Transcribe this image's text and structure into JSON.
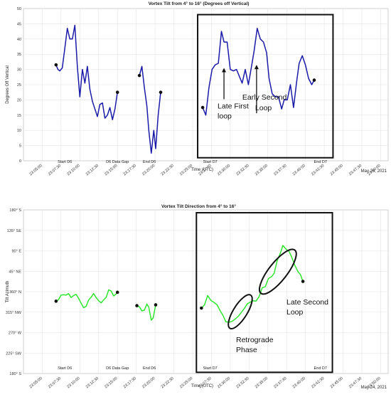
{
  "date_label": "May 24, 2021",
  "xlabel": "Time (UTC)",
  "x_ticks": [
    "23:05:00",
    "23:07:30",
    "23:10:00",
    "23:12:30",
    "23:15:00",
    "23:17:30",
    "23:20:00",
    "23:22:30",
    "23:25:00",
    "23:27:30",
    "23:30:00",
    "23:32:30",
    "23:35:00",
    "23:37:30",
    "23:40:00",
    "23:42:30",
    "23:45:00",
    "23:47:30",
    "23:50:00"
  ],
  "events": [
    {
      "label": "Start D6",
      "t": "23:08:00"
    },
    {
      "label": "D6 Data Gap",
      "t": "23:15:00"
    },
    {
      "label": "End D6",
      "t": "23:19:15"
    },
    {
      "label": "Start D7",
      "t": "23:27:20"
    },
    {
      "label": "End D7",
      "t": "23:42:00"
    }
  ],
  "colors": {
    "tilt_line": "#1a1aa8",
    "direction_line": "#2ee62e",
    "marker": "#111111",
    "box": "#111111"
  },
  "chart_data": [
    {
      "type": "line",
      "title": "Vortex Tilt from 4° to 16° (Degrees off Vertical)",
      "xlabel": "Time (UTC)",
      "ylabel": "Degrees Off Vertical",
      "xlim": [
        "23:02:30",
        "23:51:00"
      ],
      "ylim": [
        0,
        50
      ],
      "y_ticks": [
        "0",
        "5",
        "10",
        "15",
        "20",
        "25",
        "30",
        "35",
        "40",
        "45",
        "50"
      ],
      "grid": true,
      "series": [
        {
          "values": [
            [
              "23:06:50",
              31.5
            ],
            [
              "23:07:05",
              30
            ],
            [
              "23:07:20",
              29.5
            ],
            [
              "23:07:40",
              30.5
            ],
            [
              "23:08:00",
              37
            ],
            [
              "23:08:20",
              43.5
            ],
            [
              "23:08:40",
              40
            ],
            [
              "23:09:00",
              40
            ],
            [
              "23:09:20",
              44.5
            ],
            [
              "23:09:40",
              31
            ],
            [
              "23:10:00",
              21
            ],
            [
              "23:10:20",
              30
            ],
            [
              "23:10:40",
              25.5
            ],
            [
              "23:11:00",
              31
            ],
            [
              "23:11:20",
              23.5
            ],
            [
              "23:11:40",
              19.5
            ],
            [
              "23:12:00",
              17
            ],
            [
              "23:12:20",
              14.5
            ],
            [
              "23:12:40",
              18.5
            ],
            [
              "23:13:00",
              19
            ],
            [
              "23:13:20",
              14
            ],
            [
              "23:13:40",
              15
            ],
            [
              "23:14:00",
              17.5
            ],
            [
              "23:14:20",
              13.5
            ],
            [
              "23:14:40",
              17
            ],
            [
              "23:15:00",
              22.5
            ]
          ]
        },
        {
          "values": [
            [
              "23:17:55",
              28
            ],
            [
              "23:18:15",
              31
            ],
            [
              "23:18:35",
              24
            ],
            [
              "23:18:55",
              18
            ],
            [
              "23:19:10",
              10
            ],
            [
              "23:19:30",
              2.5
            ],
            [
              "23:19:50",
              10
            ],
            [
              "23:20:05",
              4
            ],
            [
              "23:20:25",
              15
            ],
            [
              "23:20:45",
              22.5
            ]
          ]
        },
        {
          "values": [
            [
              "23:26:20",
              17.5
            ],
            [
              "23:26:45",
              15
            ],
            [
              "23:27:10",
              24
            ],
            [
              "23:27:35",
              30
            ],
            [
              "23:28:00",
              31.5
            ],
            [
              "23:28:25",
              32
            ],
            [
              "23:28:50",
              42.5
            ],
            [
              "23:29:10",
              39
            ],
            [
              "23:29:35",
              39
            ],
            [
              "23:30:00",
              30
            ],
            [
              "23:30:25",
              29.5
            ],
            [
              "23:30:50",
              30
            ],
            [
              "23:31:10",
              28
            ],
            [
              "23:31:35",
              25.5
            ],
            [
              "23:32:00",
              30
            ],
            [
              "23:32:25",
              25
            ],
            [
              "23:32:50",
              31
            ],
            [
              "23:33:10",
              36
            ],
            [
              "23:33:35",
              43.5
            ],
            [
              "23:34:00",
              40
            ],
            [
              "23:34:25",
              39
            ],
            [
              "23:34:50",
              35.5
            ],
            [
              "23:35:10",
              27
            ],
            [
              "23:35:35",
              22
            ],
            [
              "23:36:00",
              21
            ],
            [
              "23:36:25",
              21
            ],
            [
              "23:36:50",
              17
            ],
            [
              "23:37:10",
              20
            ],
            [
              "23:37:35",
              20
            ],
            [
              "23:38:00",
              25
            ],
            [
              "23:38:25",
              17.5
            ],
            [
              "23:38:50",
              26
            ],
            [
              "23:39:10",
              32
            ],
            [
              "23:39:35",
              34.5
            ],
            [
              "23:40:00",
              31.5
            ],
            [
              "23:40:25",
              27
            ],
            [
              "23:40:50",
              25
            ],
            [
              "23:41:10",
              26.5
            ]
          ]
        }
      ],
      "markers": [
        [
          "23:06:50",
          31.5
        ],
        [
          "23:15:00",
          22.5
        ],
        [
          "23:17:55",
          28
        ],
        [
          "23:20:45",
          22.5
        ],
        [
          "23:26:20",
          17.5
        ],
        [
          "23:41:10",
          26.5
        ]
      ],
      "annotations": [
        {
          "text_lines": [
            "Late First",
            "loop"
          ],
          "arrow_to": [
            "23:29:10",
            30.5
          ]
        },
        {
          "text_lines": [
            "Early Second",
            "Loop"
          ],
          "arrow_to": [
            "23:33:30",
            31.5
          ]
        }
      ],
      "highlight_box": {
        "x": [
          "23:25:40",
          "23:43:40"
        ],
        "y": [
          1,
          48
        ]
      }
    },
    {
      "type": "line",
      "title": "Vortex Tilt Direction from 4° to 16°",
      "xlabel": "Time (UTC)",
      "ylabel": "Tilt Azimuth",
      "xlim": [
        "23:02:30",
        "23:51:00"
      ],
      "ylim": [
        180,
        585
      ],
      "y_ticks": [
        "180° S",
        "225° SW",
        "270° W",
        "315° NW",
        "360° N",
        "45° NE",
        "90° E",
        "135° SE",
        "180° S"
      ],
      "grid": true,
      "series": [
        {
          "values": [
            [
              "23:06:50",
              359
            ],
            [
              "23:07:10",
              363
            ],
            [
              "23:07:30",
              374
            ],
            [
              "23:07:50",
              375
            ],
            [
              "23:08:10",
              374
            ],
            [
              "23:08:30",
              378
            ],
            [
              "23:08:50",
              368
            ],
            [
              "23:09:10",
              373
            ],
            [
              "23:09:30",
              376
            ],
            [
              "23:09:50",
              366
            ],
            [
              "23:10:10",
              354
            ],
            [
              "23:10:30",
              343
            ],
            [
              "23:10:50",
              346
            ],
            [
              "23:11:10",
              362
            ],
            [
              "23:11:30",
              369
            ],
            [
              "23:11:50",
              378
            ],
            [
              "23:12:10",
              368
            ],
            [
              "23:12:30",
              360
            ],
            [
              "23:12:50",
              355
            ],
            [
              "23:13:10",
              362
            ],
            [
              "23:13:30",
              369
            ],
            [
              "23:13:50",
              387
            ],
            [
              "23:14:10",
              384
            ],
            [
              "23:14:30",
              372
            ],
            [
              "23:14:50",
              377
            ],
            [
              "23:15:00",
              381
            ]
          ]
        },
        {
          "values": [
            [
              "23:17:35",
              348
            ],
            [
              "23:17:55",
              345
            ],
            [
              "23:18:15",
              335
            ],
            [
              "23:18:35",
              337
            ],
            [
              "23:18:55",
              352
            ],
            [
              "23:19:10",
              344
            ],
            [
              "23:19:30",
              312
            ],
            [
              "23:19:45",
              318
            ],
            [
              "23:20:05",
              350
            ]
          ]
        },
        {
          "values": [
            [
              "23:26:10",
              342
            ],
            [
              "23:26:35",
              350
            ],
            [
              "23:27:00",
              373
            ],
            [
              "23:27:25",
              361
            ],
            [
              "23:27:50",
              356
            ],
            [
              "23:28:15",
              350
            ],
            [
              "23:28:40",
              335
            ],
            [
              "23:29:00",
              325
            ],
            [
              "23:29:25",
              308
            ],
            [
              "23:29:50",
              307
            ],
            [
              "23:30:15",
              309
            ],
            [
              "23:30:40",
              315
            ],
            [
              "23:31:05",
              322
            ],
            [
              "23:31:25",
              330
            ],
            [
              "23:31:50",
              340
            ],
            [
              "23:32:15",
              352
            ],
            [
              "23:32:40",
              357
            ],
            [
              "23:33:00",
              360
            ],
            [
              "23:33:25",
              359
            ],
            [
              "23:33:50",
              370
            ],
            [
              "23:34:15",
              392
            ],
            [
              "23:34:40",
              395
            ],
            [
              "23:35:05",
              415
            ],
            [
              "23:35:30",
              420
            ],
            [
              "23:35:50",
              428
            ],
            [
              "23:36:15",
              460
            ],
            [
              "23:36:40",
              478
            ],
            [
              "23:37:00",
              497
            ],
            [
              "23:37:25",
              488
            ],
            [
              "23:37:50",
              482
            ],
            [
              "23:38:10",
              468
            ],
            [
              "23:38:35",
              448
            ],
            [
              "23:39:00",
              432
            ],
            [
              "23:39:20",
              425
            ],
            [
              "23:39:40",
              408
            ]
          ]
        }
      ],
      "markers": [
        [
          "23:06:50",
          359
        ],
        [
          "23:15:00",
          381
        ],
        [
          "23:17:35",
          348
        ],
        [
          "23:20:05",
          350
        ],
        [
          "23:26:10",
          342
        ],
        [
          "23:39:40",
          408
        ]
      ],
      "annotations": [
        {
          "text_lines": [
            "Retrograde",
            "Phase"
          ],
          "ellipse_center": [
            "23:31:20",
            333
          ],
          "ellipse_radii_min_deg": [
            2.6,
            33
          ],
          "rotation": -58
        },
        {
          "text_lines": [
            "Late Second",
            "Loop"
          ],
          "ellipse_center": [
            "23:36:20",
            432
          ],
          "ellipse_radii_min_deg": [
            3.2,
            68
          ],
          "rotation": -52
        }
      ],
      "highlight_box": {
        "x": [
          "23:25:30",
          "23:43:35"
        ],
        "y": [
          183,
          578
        ]
      }
    }
  ]
}
